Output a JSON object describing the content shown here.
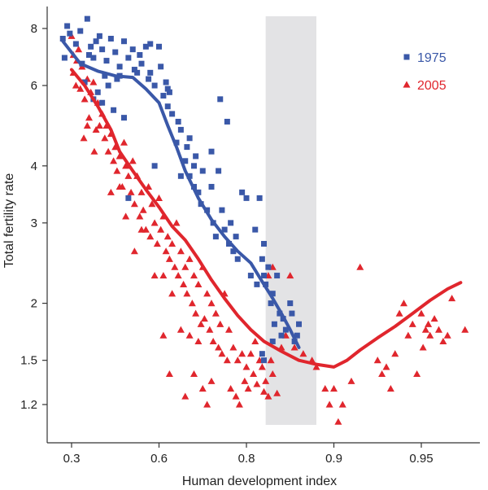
{
  "chart_data": {
    "type": "scatter",
    "title": "",
    "xlabel": "Human development index",
    "ylabel": "Total fertility rate",
    "x_ticks": [
      {
        "u": 0.0,
        "label": "0.3"
      },
      {
        "u": 1.0,
        "label": "0.6"
      },
      {
        "u": 2.0,
        "label": "0.8"
      },
      {
        "u": 3.0,
        "label": "0.9"
      },
      {
        "u": 4.0,
        "label": "0.95"
      }
    ],
    "y_ticks": [
      1.2,
      1.5,
      2,
      3,
      4,
      6,
      8
    ],
    "y_scale": "log",
    "ylim": [
      1.05,
      9.0
    ],
    "xlim_units": [
      -0.25,
      4.55
    ],
    "shaded_band": {
      "u_start": 2.22,
      "u_end": 2.8,
      "color": "#e3e3e5"
    },
    "legend": {
      "position": "top-right"
    },
    "series": [
      {
        "name": "1975",
        "marker": "square",
        "color": "#3a58a8",
        "trend": [
          [
            -0.1,
            7.5
          ],
          [
            0.1,
            6.7
          ],
          [
            0.3,
            6.45
          ],
          [
            0.5,
            6.3
          ],
          [
            0.7,
            6.25
          ],
          [
            0.85,
            5.9
          ],
          [
            1.0,
            5.5
          ],
          [
            1.1,
            4.9
          ],
          [
            1.2,
            4.4
          ],
          [
            1.3,
            3.9
          ],
          [
            1.45,
            3.4
          ],
          [
            1.6,
            3.05
          ],
          [
            1.75,
            2.8
          ],
          [
            1.9,
            2.6
          ],
          [
            2.05,
            2.45
          ],
          [
            2.2,
            2.2
          ],
          [
            2.3,
            2.05
          ],
          [
            2.4,
            1.9
          ],
          [
            2.5,
            1.75
          ],
          [
            2.6,
            1.6
          ]
        ],
        "points": [
          [
            -0.1,
            7.6
          ],
          [
            -0.05,
            8.1
          ],
          [
            -0.02,
            7.8
          ],
          [
            0.05,
            7.4
          ],
          [
            0.1,
            7.9
          ],
          [
            0.18,
            8.4
          ],
          [
            0.2,
            7.0
          ],
          [
            0.22,
            7.3
          ],
          [
            0.25,
            6.9
          ],
          [
            0.28,
            7.5
          ],
          [
            0.32,
            7.7
          ],
          [
            0.35,
            7.2
          ],
          [
            0.38,
            6.3
          ],
          [
            0.4,
            6.8
          ],
          [
            0.45,
            7.6
          ],
          [
            0.5,
            7.1
          ],
          [
            0.55,
            6.6
          ],
          [
            0.6,
            7.5
          ],
          [
            0.65,
            6.9
          ],
          [
            0.7,
            7.2
          ],
          [
            0.75,
            6.4
          ],
          [
            0.78,
            7.0
          ],
          [
            0.8,
            6.7
          ],
          [
            0.85,
            7.3
          ],
          [
            0.88,
            6.2
          ],
          [
            0.9,
            7.4
          ],
          [
            0.95,
            6.0
          ],
          [
            1.0,
            7.3
          ],
          [
            1.02,
            6.6
          ],
          [
            1.05,
            5.7
          ],
          [
            1.08,
            6.1
          ],
          [
            1.1,
            5.9
          ],
          [
            -0.08,
            6.9
          ],
          [
            0.12,
            6.7
          ],
          [
            0.3,
            5.8
          ],
          [
            0.35,
            5.5
          ],
          [
            0.42,
            6.0
          ],
          [
            0.48,
            5.3
          ],
          [
            0.55,
            6.3
          ],
          [
            0.6,
            5.1
          ],
          [
            0.15,
            6.1
          ],
          [
            0.25,
            5.6
          ],
          [
            0.52,
            6.2
          ],
          [
            0.72,
            6.5
          ],
          [
            1.12,
            5.8
          ],
          [
            1.15,
            5.2
          ],
          [
            1.2,
            4.5
          ],
          [
            1.22,
            5.0
          ],
          [
            1.25,
            4.8
          ],
          [
            1.3,
            4.1
          ],
          [
            1.32,
            4.4
          ],
          [
            1.35,
            3.8
          ],
          [
            1.4,
            3.6
          ],
          [
            1.42,
            4.2
          ],
          [
            1.45,
            3.5
          ],
          [
            1.48,
            3.3
          ],
          [
            1.5,
            3.9
          ],
          [
            1.55,
            3.2
          ],
          [
            1.6,
            3.6
          ],
          [
            1.62,
            3.0
          ],
          [
            1.65,
            2.8
          ],
          [
            1.7,
            5.6
          ],
          [
            1.72,
            3.2
          ],
          [
            1.75,
            2.9
          ],
          [
            1.8,
            2.7
          ],
          [
            1.82,
            3.0
          ],
          [
            1.85,
            2.6
          ],
          [
            1.88,
            2.8
          ],
          [
            1.9,
            2.5
          ],
          [
            1.95,
            3.5
          ],
          [
            2.0,
            3.4
          ],
          [
            2.05,
            2.3
          ],
          [
            2.1,
            2.9
          ],
          [
            2.12,
            2.2
          ],
          [
            2.15,
            3.4
          ],
          [
            2.18,
            2.5
          ],
          [
            2.2,
            2.3
          ],
          [
            2.22,
            2.2
          ],
          [
            2.25,
            2.4
          ],
          [
            2.28,
            2.0
          ],
          [
            2.3,
            2.1
          ],
          [
            2.32,
            1.8
          ],
          [
            2.35,
            2.3
          ],
          [
            2.38,
            1.9
          ],
          [
            2.4,
            1.7
          ],
          [
            2.42,
            1.85
          ],
          [
            2.45,
            1.75
          ],
          [
            2.5,
            2.0
          ],
          [
            2.52,
            1.9
          ],
          [
            2.55,
            1.65
          ],
          [
            2.58,
            1.7
          ],
          [
            2.6,
            1.8
          ],
          [
            2.2,
            1.5
          ],
          [
            2.18,
            1.55
          ],
          [
            2.3,
            1.65
          ],
          [
            1.35,
            4.6
          ],
          [
            1.6,
            4.3
          ],
          [
            1.68,
            3.9
          ],
          [
            1.25,
            3.8
          ],
          [
            1.4,
            4.0
          ],
          [
            1.78,
            5.0
          ],
          [
            2.2,
            2.7
          ],
          [
            1.1,
            5.4
          ],
          [
            0.9,
            6.4
          ],
          [
            0.95,
            4.0
          ],
          [
            0.65,
            3.4
          ]
        ]
      },
      {
        "name": "2005",
        "marker": "triangle",
        "color": "#e0262d",
        "trend": [
          [
            0.0,
            6.5
          ],
          [
            0.15,
            6.0
          ],
          [
            0.3,
            5.4
          ],
          [
            0.45,
            4.8
          ],
          [
            0.55,
            4.3
          ],
          [
            0.7,
            3.9
          ],
          [
            0.85,
            3.55
          ],
          [
            1.0,
            3.25
          ],
          [
            1.15,
            2.95
          ],
          [
            1.3,
            2.75
          ],
          [
            1.45,
            2.5
          ],
          [
            1.6,
            2.25
          ],
          [
            1.75,
            2.05
          ],
          [
            1.9,
            1.88
          ],
          [
            2.05,
            1.75
          ],
          [
            2.2,
            1.65
          ],
          [
            2.4,
            1.57
          ],
          [
            2.6,
            1.5
          ],
          [
            2.8,
            1.47
          ],
          [
            3.0,
            1.45
          ],
          [
            3.15,
            1.5
          ],
          [
            3.3,
            1.58
          ],
          [
            3.5,
            1.68
          ],
          [
            3.7,
            1.78
          ],
          [
            3.9,
            1.9
          ],
          [
            4.1,
            2.03
          ],
          [
            4.3,
            2.15
          ],
          [
            4.45,
            2.22
          ]
        ],
        "points": [
          [
            0.0,
            7.7
          ],
          [
            0.02,
            6.4
          ],
          [
            0.05,
            6.0
          ],
          [
            0.08,
            7.2
          ],
          [
            0.1,
            5.9
          ],
          [
            0.12,
            6.6
          ],
          [
            0.15,
            5.6
          ],
          [
            0.18,
            6.2
          ],
          [
            0.2,
            5.1
          ],
          [
            0.22,
            5.8
          ],
          [
            0.25,
            6.1
          ],
          [
            0.28,
            4.8
          ],
          [
            0.3,
            5.5
          ],
          [
            0.32,
            4.9
          ],
          [
            0.35,
            5.2
          ],
          [
            0.38,
            4.6
          ],
          [
            0.4,
            4.9
          ],
          [
            0.42,
            4.3
          ],
          [
            0.45,
            4.7
          ],
          [
            0.48,
            4.1
          ],
          [
            0.5,
            4.4
          ],
          [
            0.52,
            3.9
          ],
          [
            0.55,
            4.2
          ],
          [
            0.58,
            3.6
          ],
          [
            0.6,
            4.5
          ],
          [
            0.62,
            4.0
          ],
          [
            0.65,
            3.8
          ],
          [
            0.68,
            3.5
          ],
          [
            0.7,
            4.1
          ],
          [
            0.72,
            3.3
          ],
          [
            0.75,
            3.8
          ],
          [
            0.78,
            3.1
          ],
          [
            0.8,
            3.5
          ],
          [
            0.82,
            3.2
          ],
          [
            0.85,
            2.9
          ],
          [
            0.88,
            3.6
          ],
          [
            0.9,
            2.8
          ],
          [
            0.92,
            3.3
          ],
          [
            0.95,
            3.0
          ],
          [
            0.98,
            2.7
          ],
          [
            1.0,
            3.4
          ],
          [
            1.02,
            2.9
          ],
          [
            1.05,
            3.1
          ],
          [
            1.08,
            2.6
          ],
          [
            1.1,
            2.8
          ],
          [
            1.12,
            2.5
          ],
          [
            1.15,
            2.7
          ],
          [
            1.18,
            2.4
          ],
          [
            1.2,
            3.0
          ],
          [
            1.22,
            2.3
          ],
          [
            1.25,
            2.6
          ],
          [
            1.28,
            2.2
          ],
          [
            1.3,
            2.4
          ],
          [
            1.32,
            2.1
          ],
          [
            1.35,
            2.5
          ],
          [
            1.38,
            2.0
          ],
          [
            1.4,
            2.3
          ],
          [
            1.42,
            1.9
          ],
          [
            1.45,
            2.2
          ],
          [
            1.48,
            1.8
          ],
          [
            1.5,
            2.4
          ],
          [
            1.52,
            1.85
          ],
          [
            1.55,
            2.1
          ],
          [
            1.58,
            1.75
          ],
          [
            1.6,
            2.0
          ],
          [
            1.62,
            1.65
          ],
          [
            1.65,
            1.9
          ],
          [
            1.68,
            1.6
          ],
          [
            1.7,
            1.8
          ],
          [
            1.72,
            1.55
          ],
          [
            1.75,
            2.1
          ],
          [
            1.78,
            1.5
          ],
          [
            1.8,
            1.75
          ],
          [
            1.82,
            1.3
          ],
          [
            1.85,
            1.6
          ],
          [
            1.88,
            1.25
          ],
          [
            1.9,
            1.5
          ],
          [
            1.92,
            1.2
          ],
          [
            1.95,
            1.55
          ],
          [
            1.98,
            1.35
          ],
          [
            2.0,
            1.45
          ],
          [
            2.02,
            1.3
          ],
          [
            2.05,
            1.55
          ],
          [
            2.08,
            1.4
          ],
          [
            2.1,
            1.65
          ],
          [
            2.12,
            1.33
          ],
          [
            2.15,
            1.5
          ],
          [
            2.18,
            1.45
          ],
          [
            2.2,
            1.28
          ],
          [
            2.22,
            1.35
          ],
          [
            2.25,
            1.25
          ],
          [
            2.28,
            1.5
          ],
          [
            2.3,
            1.4
          ],
          [
            2.35,
            1.27
          ],
          [
            2.4,
            1.6
          ],
          [
            0.02,
            7.0
          ],
          [
            0.06,
            6.8
          ],
          [
            0.14,
            4.6
          ],
          [
            0.18,
            4.9
          ],
          [
            0.26,
            4.3
          ],
          [
            0.45,
            3.5
          ],
          [
            0.55,
            3.6
          ],
          [
            0.62,
            3.1
          ],
          [
            0.72,
            2.6
          ],
          [
            0.8,
            2.9
          ],
          [
            0.95,
            2.3
          ],
          [
            1.05,
            2.3
          ],
          [
            1.15,
            2.1
          ],
          [
            1.25,
            1.75
          ],
          [
            1.35,
            1.7
          ],
          [
            1.45,
            1.65
          ],
          [
            1.3,
            1.25
          ],
          [
            1.4,
            1.4
          ],
          [
            1.5,
            1.3
          ],
          [
            1.55,
            1.2
          ],
          [
            1.6,
            1.35
          ],
          [
            1.12,
            1.4
          ],
          [
            1.05,
            1.7
          ],
          [
            2.25,
            2.3
          ],
          [
            2.3,
            2.4
          ],
          [
            2.45,
            1.7
          ],
          [
            2.5,
            2.3
          ],
          [
            2.55,
            1.6
          ],
          [
            2.65,
            1.55
          ],
          [
            2.75,
            1.5
          ],
          [
            2.8,
            1.45
          ],
          [
            2.9,
            1.3
          ],
          [
            2.95,
            1.2
          ],
          [
            3.0,
            1.3
          ],
          [
            3.05,
            1.1
          ],
          [
            3.1,
            1.2
          ],
          [
            3.2,
            1.35
          ],
          [
            3.3,
            2.4
          ],
          [
            3.5,
            1.5
          ],
          [
            3.55,
            1.4
          ],
          [
            3.6,
            1.45
          ],
          [
            3.65,
            1.3
          ],
          [
            3.7,
            1.55
          ],
          [
            3.75,
            1.9
          ],
          [
            3.8,
            2.0
          ],
          [
            3.85,
            1.7
          ],
          [
            3.9,
            1.8
          ],
          [
            3.95,
            1.4
          ],
          [
            4.0,
            1.9
          ],
          [
            4.02,
            1.6
          ],
          [
            4.05,
            1.75
          ],
          [
            4.08,
            1.8
          ],
          [
            4.1,
            1.7
          ],
          [
            4.15,
            1.85
          ],
          [
            4.2,
            1.75
          ],
          [
            4.25,
            1.65
          ],
          [
            4.3,
            1.7
          ],
          [
            4.35,
            2.05
          ],
          [
            4.5,
            1.75
          ]
        ]
      }
    ]
  }
}
